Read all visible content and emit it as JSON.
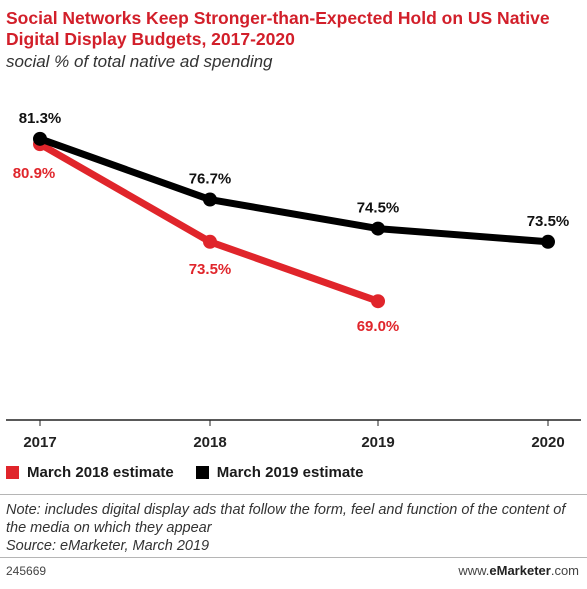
{
  "chart_data": {
    "type": "line",
    "title": "Social Networks Keep Stronger-than-Expected Hold on US Native Digital Display Budgets, 2017-2020",
    "subtitle": "social % of total native ad spending",
    "categories": [
      "2017",
      "2018",
      "2019",
      "2020"
    ],
    "ylim": [
      60,
      85
    ],
    "grid": false,
    "legend_position": "bottom-left",
    "series": [
      {
        "name": "March 2018 estimate",
        "color": "#e0252b",
        "values": [
          80.9,
          73.5,
          69.0,
          null
        ],
        "labels": [
          "80.9%",
          "73.5%",
          "69.0%",
          ""
        ]
      },
      {
        "name": "March 2019 estimate",
        "color": "#000000",
        "values": [
          81.3,
          76.7,
          74.5,
          73.5
        ],
        "labels": [
          "81.3%",
          "76.7%",
          "74.5%",
          "73.5%"
        ]
      }
    ]
  },
  "note": "Note: includes digital display ads that follow the form, feel and function of the content of the media on which they appear",
  "source": "Source: eMarketer, March 2019",
  "chart_id": "245669",
  "brand": {
    "prefix": "www.",
    "name": "eMarketer",
    "suffix": ".com"
  }
}
